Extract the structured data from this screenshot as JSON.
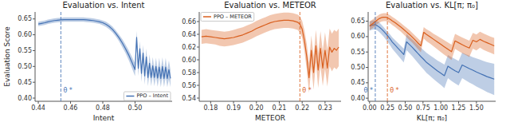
{
  "chart_data": [
    {
      "type": "line",
      "title": "Evaluation vs. Intent",
      "x_label": "Intent",
      "y_label": "Evaluation Score",
      "xlim": [
        0.438,
        0.523
      ],
      "ylim": [
        0.39,
        0.672
      ],
      "xticks": [
        0.44,
        0.46,
        0.48,
        {
          "value": 0.5,
          "label": "0.50"
        }
      ],
      "yticks": [
        {
          "value": 0.4,
          "label": "0.40"
        },
        0.45,
        {
          "value": 0.5,
          "label": "0.50"
        },
        0.55,
        {
          "value": 0.6,
          "label": "0.60"
        },
        0.65
      ],
      "legend": "lower right",
      "annotations": [
        {
          "x": 0.454,
          "text": "θ *",
          "color": "#4472B4"
        }
      ],
      "series": [
        {
          "name": "PPO – Intent",
          "color": "#4472B4",
          "x": [
            0.44,
            0.442,
            0.444,
            0.446,
            0.448,
            0.45,
            0.452,
            0.454,
            0.456,
            0.458,
            0.46,
            0.462,
            0.464,
            0.466,
            0.468,
            0.47,
            0.472,
            0.474,
            0.476,
            0.478,
            0.48,
            0.482,
            0.484,
            0.486,
            0.488,
            0.49,
            0.492,
            0.494,
            0.496,
            0.498,
            0.5,
            0.501,
            0.502,
            0.503,
            0.504,
            0.505,
            0.506,
            0.507,
            0.508,
            0.509,
            0.51,
            0.511,
            0.512,
            0.513,
            0.514,
            0.515,
            0.516,
            0.517,
            0.518,
            0.519,
            0.52,
            0.521,
            0.522
          ],
          "values": [
            0.634,
            0.636,
            0.638,
            0.641,
            0.643,
            0.645,
            0.646,
            0.647,
            0.648,
            0.648,
            0.648,
            0.648,
            0.648,
            0.648,
            0.648,
            0.647,
            0.646,
            0.645,
            0.643,
            0.641,
            0.638,
            0.633,
            0.626,
            0.617,
            0.605,
            0.591,
            0.575,
            0.557,
            0.537,
            0.514,
            0.49,
            0.592,
            0.494,
            0.556,
            0.478,
            0.542,
            0.47,
            0.53,
            0.465,
            0.51,
            0.465,
            0.502,
            0.465,
            0.5,
            0.463,
            0.498,
            0.462,
            0.5,
            0.462,
            0.498,
            0.462,
            0.49,
            0.462
          ],
          "lower": [
            0.627,
            0.629,
            0.631,
            0.634,
            0.636,
            0.638,
            0.639,
            0.64,
            0.641,
            0.641,
            0.641,
            0.641,
            0.641,
            0.641,
            0.641,
            0.64,
            0.639,
            0.638,
            0.636,
            0.634,
            0.63,
            0.625,
            0.617,
            0.608,
            0.595,
            0.58,
            0.562,
            0.543,
            0.521,
            0.496,
            0.469,
            0.57,
            0.47,
            0.53,
            0.451,
            0.515,
            0.443,
            0.502,
            0.438,
            0.48,
            0.438,
            0.473,
            0.438,
            0.47,
            0.436,
            0.468,
            0.435,
            0.47,
            0.435,
            0.468,
            0.435,
            0.46,
            0.435
          ],
          "upper": [
            0.641,
            0.643,
            0.645,
            0.648,
            0.65,
            0.652,
            0.653,
            0.654,
            0.655,
            0.655,
            0.655,
            0.655,
            0.655,
            0.655,
            0.655,
            0.654,
            0.653,
            0.652,
            0.65,
            0.648,
            0.645,
            0.641,
            0.634,
            0.626,
            0.614,
            0.601,
            0.587,
            0.57,
            0.552,
            0.531,
            0.51,
            0.612,
            0.517,
            0.58,
            0.504,
            0.568,
            0.496,
            0.557,
            0.491,
            0.538,
            0.491,
            0.53,
            0.491,
            0.528,
            0.489,
            0.527,
            0.488,
            0.529,
            0.488,
            0.527,
            0.488,
            0.519,
            0.488
          ]
        }
      ]
    },
    {
      "type": "line",
      "title": "Evaluation vs. METEOR",
      "x_label": "METEOR",
      "xlim": [
        0.175,
        0.237
      ],
      "ylim": [
        0.535,
        0.675
      ],
      "xticks": [
        0.18,
        0.19,
        {
          "value": 0.2,
          "label": "0.20"
        },
        0.21,
        0.22,
        0.23
      ],
      "yticks": [
        0.54,
        0.56,
        0.58,
        {
          "value": 0.6,
          "label": "0.60"
        },
        0.62,
        0.64,
        0.66
      ],
      "legend": "upper left",
      "annotations": [
        {
          "x": 0.219,
          "text": "θ *",
          "color": "#D95F1E"
        }
      ],
      "series": [
        {
          "name": "PPO – METEOR",
          "color": "#D95F1E",
          "x": [
            0.176,
            0.178,
            0.18,
            0.182,
            0.184,
            0.186,
            0.188,
            0.19,
            0.192,
            0.194,
            0.196,
            0.198,
            0.2,
            0.202,
            0.204,
            0.206,
            0.208,
            0.21,
            0.212,
            0.214,
            0.216,
            0.218,
            0.219,
            0.22,
            0.221,
            0.222,
            0.223,
            0.224,
            0.225,
            0.226,
            0.227,
            0.228,
            0.229,
            0.23,
            0.231,
            0.232,
            0.233,
            0.234,
            0.235,
            0.236
          ],
          "values": [
            0.636,
            0.637,
            0.636,
            0.635,
            0.634,
            0.633,
            0.634,
            0.635,
            0.637,
            0.639,
            0.642,
            0.645,
            0.649,
            0.652,
            0.655,
            0.658,
            0.66,
            0.661,
            0.662,
            0.662,
            0.661,
            0.659,
            0.656,
            0.648,
            0.63,
            0.605,
            0.572,
            0.615,
            0.58,
            0.622,
            0.584,
            0.618,
            0.587,
            0.615,
            0.587,
            0.62,
            0.612,
            0.618,
            0.615,
            0.62
          ],
          "lower": [
            0.625,
            0.626,
            0.625,
            0.624,
            0.622,
            0.621,
            0.622,
            0.623,
            0.625,
            0.627,
            0.63,
            0.633,
            0.637,
            0.64,
            0.643,
            0.646,
            0.648,
            0.649,
            0.65,
            0.65,
            0.649,
            0.647,
            0.643,
            0.634,
            0.613,
            0.584,
            0.548,
            0.59,
            0.553,
            0.596,
            0.556,
            0.59,
            0.559,
            0.586,
            0.558,
            0.59,
            0.582,
            0.588,
            0.585,
            0.59
          ],
          "upper": [
            0.647,
            0.648,
            0.647,
            0.646,
            0.645,
            0.644,
            0.645,
            0.647,
            0.649,
            0.651,
            0.654,
            0.657,
            0.661,
            0.664,
            0.667,
            0.67,
            0.672,
            0.673,
            0.674,
            0.674,
            0.673,
            0.671,
            0.668,
            0.661,
            0.646,
            0.625,
            0.595,
            0.638,
            0.606,
            0.647,
            0.611,
            0.645,
            0.614,
            0.643,
            0.615,
            0.649,
            0.641,
            0.647,
            0.644,
            0.649
          ]
        }
      ]
    },
    {
      "type": "line",
      "title": "Evaluation vs. KL[π; π₀]",
      "x_label": "KL[π; π₀]",
      "xlim": [
        -0.02,
        1.77
      ],
      "ylim": [
        0.39,
        0.68
      ],
      "xticks": [
        {
          "value": 0,
          "label": "0.00"
        },
        0.25,
        {
          "value": 0.5,
          "label": "0.50"
        },
        0.75,
        {
          "value": 1,
          "label": "1.00"
        },
        1.25,
        {
          "value": 1.5,
          "label": "1.50"
        }
      ],
      "yticks": [
        {
          "value": 0.4,
          "label": "0.40"
        },
        0.45,
        {
          "value": 0.5,
          "label": "0.50"
        },
        0.55,
        {
          "value": 0.6,
          "label": "0.60"
        },
        0.65
      ],
      "annotations": [
        {
          "x": 0.08,
          "text": "θ *",
          "color": "#4472B4"
        },
        {
          "x": 0.25,
          "text": "θ *",
          "color": "#D95F1E"
        }
      ],
      "series": [
        {
          "color": "#4472B4",
          "x": [
            0.0,
            0.02,
            0.05,
            0.08,
            0.11,
            0.14,
            0.17,
            0.2,
            0.23,
            0.26,
            0.29,
            0.32,
            0.36,
            0.4,
            0.44,
            0.48,
            0.52,
            0.56,
            0.6,
            0.64,
            0.68,
            0.72,
            0.76,
            0.8,
            0.85,
            0.9,
            0.95,
            1.0,
            1.05,
            1.1,
            1.15,
            1.2,
            1.25,
            1.3,
            1.35,
            1.4,
            1.45,
            1.5,
            1.55,
            1.6,
            1.65,
            1.7,
            1.75
          ],
          "values": [
            0.634,
            0.636,
            0.638,
            0.638,
            0.635,
            0.63,
            0.624,
            0.617,
            0.609,
            0.601,
            0.592,
            0.582,
            0.572,
            0.562,
            0.552,
            0.542,
            0.583,
            0.574,
            0.565,
            0.555,
            0.545,
            0.535,
            0.526,
            0.516,
            0.507,
            0.498,
            0.489,
            0.481,
            0.473,
            0.504,
            0.496,
            0.489,
            0.483,
            0.508,
            0.502,
            0.496,
            0.491,
            0.485,
            0.48,
            0.475,
            0.47,
            0.466,
            0.462
          ],
          "lower": [
            0.619,
            0.621,
            0.623,
            0.623,
            0.62,
            0.614,
            0.607,
            0.599,
            0.59,
            0.581,
            0.571,
            0.56,
            0.549,
            0.538,
            0.527,
            0.516,
            0.556,
            0.546,
            0.536,
            0.525,
            0.514,
            0.503,
            0.493,
            0.482,
            0.472,
            0.462,
            0.452,
            0.443,
            0.433,
            0.465,
            0.456,
            0.448,
            0.441,
            0.465,
            0.458,
            0.451,
            0.445,
            0.438,
            0.432,
            0.426,
            0.42,
            0.415,
            0.41
          ],
          "upper": [
            0.649,
            0.651,
            0.653,
            0.653,
            0.65,
            0.645,
            0.638,
            0.63,
            0.622,
            0.614,
            0.606,
            0.597,
            0.588,
            0.579,
            0.57,
            0.561,
            0.608,
            0.599,
            0.591,
            0.582,
            0.573,
            0.564,
            0.556,
            0.547,
            0.539,
            0.531,
            0.523,
            0.516,
            0.509,
            0.54,
            0.533,
            0.527,
            0.521,
            0.548,
            0.543,
            0.538,
            0.533,
            0.529,
            0.525,
            0.521,
            0.517,
            0.514,
            0.512
          ]
        },
        {
          "color": "#D95F1E",
          "x": [
            0.0,
            0.02,
            0.05,
            0.08,
            0.11,
            0.14,
            0.17,
            0.2,
            0.23,
            0.26,
            0.29,
            0.32,
            0.36,
            0.4,
            0.44,
            0.48,
            0.52,
            0.56,
            0.6,
            0.64,
            0.68,
            0.72,
            0.76,
            0.8,
            0.85,
            0.9,
            0.95,
            1.0,
            1.05,
            1.1,
            1.15,
            1.2,
            1.25,
            1.3,
            1.35,
            1.4,
            1.45,
            1.5,
            1.55,
            1.6,
            1.65,
            1.7,
            1.75
          ],
          "values": [
            0.635,
            0.638,
            0.643,
            0.649,
            0.654,
            0.659,
            0.662,
            0.663,
            0.663,
            0.66,
            0.656,
            0.651,
            0.645,
            0.638,
            0.631,
            0.623,
            0.615,
            0.607,
            0.598,
            0.589,
            0.579,
            0.57,
            0.614,
            0.607,
            0.599,
            0.591,
            0.583,
            0.575,
            0.567,
            0.559,
            0.551,
            0.586,
            0.58,
            0.574,
            0.568,
            0.563,
            0.588,
            0.583,
            0.591,
            0.585,
            0.58,
            0.575,
            0.57
          ],
          "lower": [
            0.621,
            0.624,
            0.629,
            0.635,
            0.641,
            0.646,
            0.649,
            0.65,
            0.65,
            0.647,
            0.643,
            0.637,
            0.631,
            0.623,
            0.616,
            0.607,
            0.598,
            0.589,
            0.58,
            0.57,
            0.559,
            0.549,
            0.594,
            0.585,
            0.577,
            0.568,
            0.559,
            0.55,
            0.541,
            0.533,
            0.524,
            0.56,
            0.553,
            0.546,
            0.54,
            0.534,
            0.561,
            0.555,
            0.564,
            0.557,
            0.552,
            0.547,
            0.542
          ],
          "upper": [
            0.649,
            0.652,
            0.657,
            0.663,
            0.667,
            0.672,
            0.675,
            0.676,
            0.676,
            0.673,
            0.669,
            0.664,
            0.658,
            0.651,
            0.644,
            0.636,
            0.629,
            0.621,
            0.612,
            0.603,
            0.594,
            0.584,
            0.631,
            0.624,
            0.617,
            0.609,
            0.602,
            0.595,
            0.588,
            0.581,
            0.574,
            0.609,
            0.603,
            0.597,
            0.592,
            0.587,
            0.612,
            0.607,
            0.616,
            0.61,
            0.605,
            0.6,
            0.596
          ]
        }
      ]
    }
  ]
}
